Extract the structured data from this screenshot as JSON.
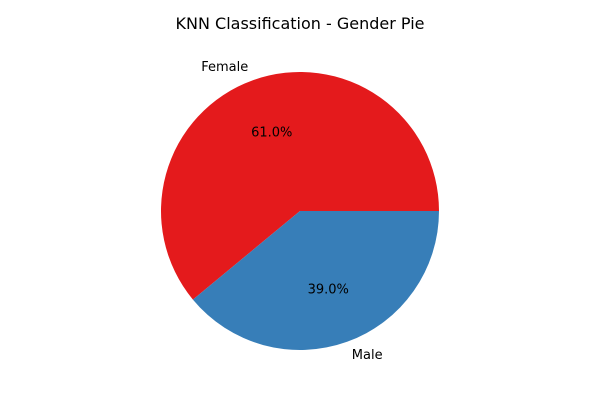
{
  "chart_data": {
    "type": "pie",
    "title": "KNN Classification - Gender Pie",
    "categories": [
      "Female",
      "Male"
    ],
    "values": [
      61.0,
      39.0
    ],
    "percent_labels": [
      "61.0%",
      "39.0%"
    ],
    "colors": [
      "#e41a1c",
      "#377eb8"
    ],
    "start_angle_deg": 0,
    "legend": "none"
  }
}
